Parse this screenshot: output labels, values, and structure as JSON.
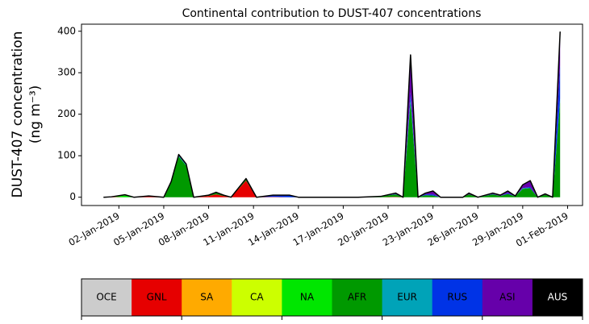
{
  "chart_data": {
    "type": "stacked_area",
    "title": "Continental contribution to DUST-407 concentrations",
    "ylabel": [
      "DUST-407 concentration",
      "(ng m⁻³)"
    ],
    "x": [
      1,
      1.5,
      2.4,
      3,
      4,
      5,
      5.5,
      6,
      6.5,
      7,
      8,
      8.5,
      9,
      9.5,
      10.5,
      11.2,
      12.3,
      13.4,
      14,
      16,
      18,
      19.5,
      20.5,
      21,
      21.5,
      22,
      22.5,
      23,
      23.5,
      25,
      25.4,
      26,
      27,
      27.5,
      28,
      28.5,
      29,
      29.5,
      30,
      30.5,
      31,
      31.5
    ],
    "xlim": [
      -0.5,
      33
    ],
    "xticks": [
      {
        "value": 2,
        "label": "02-Jan-2019"
      },
      {
        "value": 5,
        "label": "05-Jan-2019"
      },
      {
        "value": 8,
        "label": "08-Jan-2019"
      },
      {
        "value": 11,
        "label": "11-Jan-2019"
      },
      {
        "value": 14,
        "label": "14-Jan-2019"
      },
      {
        "value": 17,
        "label": "17-Jan-2019"
      },
      {
        "value": 20,
        "label": "20-Jan-2019"
      },
      {
        "value": 23,
        "label": "23-Jan-2019"
      },
      {
        "value": 26,
        "label": "26-Jan-2019"
      },
      {
        "value": 29,
        "label": "29-Jan-2019"
      },
      {
        "value": 32,
        "label": "01-Feb-2019"
      }
    ],
    "ylim": [
      -20,
      417
    ],
    "yticks": [
      0,
      100,
      200,
      300,
      400
    ],
    "series": [
      {
        "name": "OCE",
        "color": "#cccccc",
        "values": [
          0,
          0,
          0,
          0,
          0,
          0,
          0,
          0,
          0,
          0,
          0,
          0,
          0,
          0,
          0,
          0,
          0,
          0,
          0,
          0,
          0,
          0,
          0,
          0,
          0,
          0,
          0,
          0,
          0,
          0,
          0,
          0,
          0,
          0,
          0,
          0,
          0,
          0,
          0,
          0,
          0,
          0
        ]
      },
      {
        "name": "GNL",
        "color": "#e60000",
        "values": [
          0,
          1,
          0,
          0,
          2,
          0,
          0,
          0,
          0,
          0,
          3,
          7,
          3,
          0,
          40,
          0,
          1,
          0,
          0,
          0,
          0,
          0,
          1,
          0,
          0,
          0,
          0,
          0,
          0,
          0,
          0,
          0,
          0,
          0,
          0,
          0,
          0,
          0,
          0,
          0,
          0,
          0
        ]
      },
      {
        "name": "SA",
        "color": "#ffaa00",
        "values": [
          0,
          0,
          0,
          0,
          0,
          0,
          0,
          0,
          0,
          0,
          0,
          0,
          0,
          0,
          0,
          0,
          0,
          0,
          0,
          0,
          0,
          0,
          0,
          0,
          0,
          0,
          0,
          0,
          0,
          0,
          0,
          0,
          0,
          0,
          0,
          0,
          0,
          0,
          0,
          0,
          0,
          0
        ]
      },
      {
        "name": "CA",
        "color": "#ccff00",
        "values": [
          0,
          0,
          0,
          0,
          0,
          0,
          0,
          0,
          0,
          0,
          0,
          0,
          0,
          0,
          0,
          0,
          0,
          0,
          0,
          0,
          0,
          0,
          0,
          0,
          0,
          0,
          0,
          0,
          0,
          0,
          0,
          0,
          0,
          0,
          0,
          0,
          0,
          0,
          0,
          0,
          0,
          0
        ]
      },
      {
        "name": "NA",
        "color": "#00e600",
        "values": [
          0,
          0,
          4,
          0,
          0,
          0,
          0,
          0,
          0,
          0,
          0,
          0,
          0,
          0,
          0,
          0,
          0,
          0,
          0,
          0,
          0,
          0,
          0,
          0,
          0,
          0,
          0,
          0,
          0,
          0,
          0,
          0,
          0,
          0,
          0,
          0,
          0,
          0,
          0,
          0,
          0,
          0
        ]
      },
      {
        "name": "AFR",
        "color": "#009900",
        "values": [
          0,
          0,
          2,
          0,
          1,
          0,
          38,
          98,
          76,
          0,
          2,
          4,
          2,
          0,
          4,
          0,
          0,
          0,
          0,
          0,
          0,
          2,
          6,
          0,
          230,
          0,
          5,
          4,
          0,
          0,
          7,
          0,
          7,
          3,
          8,
          2,
          20,
          22,
          0,
          6,
          0,
          230
        ]
      },
      {
        "name": "EUR",
        "color": "#00a3b8",
        "values": [
          0,
          0,
          0,
          0,
          0,
          0,
          0,
          2,
          2,
          0,
          0,
          0,
          0,
          0,
          0,
          0,
          0,
          0,
          0,
          0,
          0,
          0,
          0,
          0,
          8,
          0,
          0,
          0,
          0,
          0,
          0,
          0,
          0,
          0,
          0,
          0,
          2,
          0,
          0,
          0,
          0,
          8
        ]
      },
      {
        "name": "RUS",
        "color": "#0033e6",
        "values": [
          0,
          0,
          0,
          0,
          0,
          0,
          0,
          1,
          1,
          0,
          0,
          1,
          0,
          0,
          1,
          0,
          4,
          5,
          0,
          0,
          0,
          0,
          1,
          0,
          15,
          0,
          2,
          3,
          0,
          0,
          0,
          0,
          1,
          0,
          2,
          0,
          0,
          3,
          0,
          0,
          0,
          80
        ]
      },
      {
        "name": "ASI",
        "color": "#6600aa",
        "values": [
          0,
          0,
          0,
          0,
          0,
          0,
          0,
          2,
          1,
          0,
          0,
          0,
          0,
          0,
          0,
          0,
          0,
          0,
          0,
          0,
          0,
          0,
          2,
          0,
          90,
          0,
          3,
          8,
          0,
          0,
          3,
          0,
          2,
          2,
          5,
          1,
          8,
          15,
          0,
          2,
          0,
          80
        ]
      },
      {
        "name": "AUS",
        "color": "#000000",
        "values": [
          0,
          0,
          0,
          0,
          0,
          0,
          0,
          0,
          0,
          0,
          0,
          0,
          0,
          0,
          0,
          0,
          0,
          0,
          0,
          0,
          0,
          0,
          0,
          0,
          0,
          0,
          0,
          0,
          0,
          0,
          0,
          0,
          0,
          0,
          0,
          0,
          0,
          0,
          0,
          0,
          0,
          0
        ]
      }
    ]
  }
}
